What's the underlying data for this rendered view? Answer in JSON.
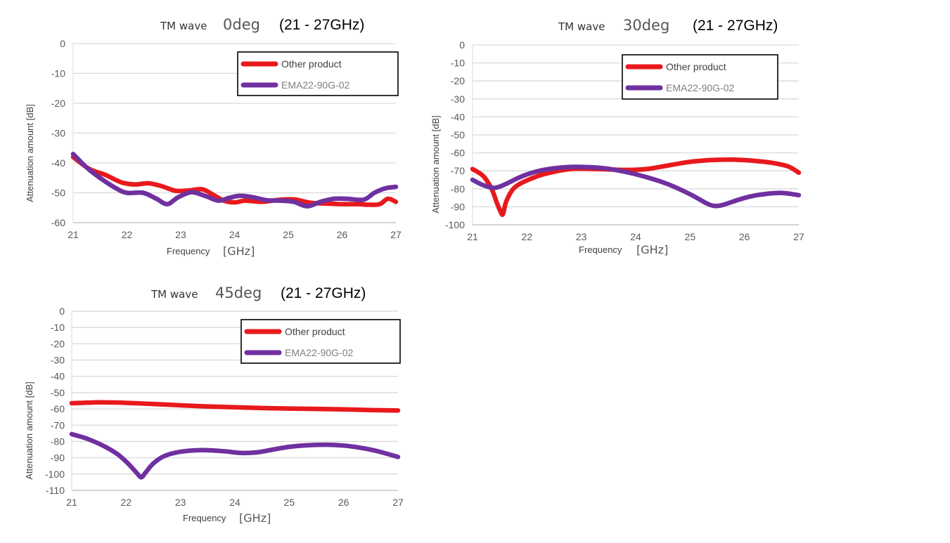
{
  "chart_data": [
    {
      "type": "line",
      "title_prefix": "TM wave",
      "title_angle": "0deg",
      "title_range": "(21 - 27GHz)",
      "xlabel": "Frequency",
      "xunit": "[GHz]",
      "ylabel": "Attenuation amount [dB]",
      "xlim": [
        21,
        27
      ],
      "ylim": [
        -60,
        0
      ],
      "xticks": [
        21,
        22,
        23,
        24,
        25,
        26,
        27
      ],
      "yticks": [
        0,
        -10,
        -20,
        -30,
        -40,
        -50,
        -60
      ],
      "grid": true,
      "legend_position": "top-right",
      "series": [
        {
          "name": "Other product",
          "color": "#e8191c",
          "x": [
            21,
            21.3,
            21.6,
            21.9,
            22.15,
            22.4,
            22.65,
            22.9,
            23.15,
            23.4,
            23.6,
            23.8,
            24.0,
            24.2,
            24.5,
            24.8,
            25.1,
            25.4,
            25.7,
            26.0,
            26.3,
            26.5,
            26.7,
            26.85,
            27
          ],
          "y": [
            -38,
            -42,
            -44,
            -46.5,
            -47.2,
            -46.8,
            -47.8,
            -49.3,
            -49.2,
            -48.8,
            -50.6,
            -52.6,
            -53.2,
            -52.6,
            -53,
            -52.4,
            -52.2,
            -53.3,
            -53.6,
            -53.8,
            -53.8,
            -54,
            -53.8,
            -52,
            -53
          ]
        },
        {
          "name": "EMA22-90G-02",
          "color": "#7030a0",
          "x": [
            21,
            21.25,
            21.5,
            21.8,
            22.0,
            22.3,
            22.55,
            22.75,
            22.95,
            23.2,
            23.45,
            23.7,
            23.9,
            24.1,
            24.35,
            24.6,
            24.85,
            25.1,
            25.35,
            25.6,
            25.85,
            26.1,
            26.4,
            26.6,
            26.8,
            27
          ],
          "y": [
            -37,
            -41.5,
            -45,
            -48.5,
            -50,
            -50,
            -52,
            -53.8,
            -51.5,
            -49.8,
            -51,
            -52.6,
            -51.7,
            -51,
            -51.5,
            -52.5,
            -52.6,
            -53,
            -54.5,
            -53,
            -52,
            -52,
            -52.3,
            -50,
            -48.5,
            -48
          ]
        }
      ]
    },
    {
      "type": "line",
      "title_prefix": "TM wave",
      "title_angle": "30deg",
      "title_range": "(21 - 27GHz)",
      "xlabel": "Frequency",
      "xunit": "[GHz]",
      "ylabel": "Attenuation amount [dB]",
      "xlim": [
        21,
        27
      ],
      "ylim": [
        -100,
        0
      ],
      "xticks": [
        21,
        22,
        23,
        24,
        25,
        26,
        27
      ],
      "yticks": [
        0,
        -10,
        -20,
        -30,
        -40,
        -50,
        -60,
        -70,
        -80,
        -90,
        -100
      ],
      "grid": true,
      "legend_position": "top-right",
      "series": [
        {
          "name": "Other product",
          "color": "#e8191c",
          "x": [
            21,
            21.2,
            21.35,
            21.45,
            21.52,
            21.56,
            21.62,
            21.75,
            21.95,
            22.3,
            22.8,
            23.3,
            23.8,
            24.2,
            24.6,
            25.0,
            25.4,
            25.8,
            26.2,
            26.5,
            26.8,
            27
          ],
          "y": [
            -69,
            -73,
            -80,
            -88,
            -93,
            -94,
            -87,
            -80,
            -76,
            -72,
            -69,
            -69,
            -69.5,
            -69,
            -67,
            -65,
            -64,
            -63.8,
            -64.5,
            -65.5,
            -67.5,
            -71
          ]
        },
        {
          "name": "EMA22-90G-02",
          "color": "#7030a0",
          "x": [
            21,
            21.2,
            21.4,
            21.6,
            21.8,
            22.0,
            22.3,
            22.7,
            23.0,
            23.4,
            23.8,
            24.2,
            24.6,
            25.0,
            25.3,
            25.45,
            25.6,
            25.85,
            26.1,
            26.4,
            26.7,
            27
          ],
          "y": [
            -75,
            -78,
            -79.5,
            -77.5,
            -74.5,
            -72,
            -69.5,
            -68,
            -67.8,
            -68.5,
            -70.5,
            -73.5,
            -77.5,
            -83,
            -88,
            -89.5,
            -89,
            -86.5,
            -84.3,
            -82.8,
            -82.3,
            -83.5
          ]
        }
      ]
    },
    {
      "type": "line",
      "title_prefix": "TM wave",
      "title_angle": "45deg",
      "title_range": "(21 - 27GHz)",
      "xlabel": "Frequency",
      "xunit": "[GHz]",
      "ylabel": "Attenuation amount [dB]",
      "xlim": [
        21,
        27
      ],
      "ylim": [
        -110,
        0
      ],
      "xticks": [
        21,
        22,
        23,
        24,
        25,
        26,
        27
      ],
      "yticks": [
        0,
        -10,
        -20,
        -30,
        -40,
        -50,
        -60,
        -70,
        -80,
        -90,
        -100,
        -110
      ],
      "grid": true,
      "legend_position": "top-right",
      "series": [
        {
          "name": "Other product",
          "color": "#e8191c",
          "x": [
            21,
            21.5,
            22,
            22.5,
            23,
            23.5,
            24,
            24.5,
            25,
            25.5,
            26,
            26.5,
            27
          ],
          "y": [
            -56.5,
            -56,
            -56.3,
            -57,
            -57.8,
            -58.5,
            -59,
            -59.5,
            -59.8,
            -60,
            -60.3,
            -60.7,
            -61
          ]
        },
        {
          "name": "EMA22-90G-02",
          "color": "#7030a0",
          "x": [
            21,
            21.3,
            21.6,
            21.85,
            22.05,
            22.2,
            22.28,
            22.36,
            22.5,
            22.7,
            23.0,
            23.4,
            23.8,
            24.1,
            24.4,
            24.7,
            25.0,
            25.35,
            25.7,
            26.0,
            26.3,
            26.6,
            27
          ],
          "y": [
            -75.5,
            -78.5,
            -83,
            -88,
            -94,
            -99.5,
            -102,
            -99,
            -93.5,
            -89,
            -86.3,
            -85.3,
            -86,
            -87,
            -86.7,
            -85,
            -83.3,
            -82.3,
            -82,
            -82.5,
            -83.8,
            -85.8,
            -89.5
          ]
        }
      ]
    }
  ]
}
